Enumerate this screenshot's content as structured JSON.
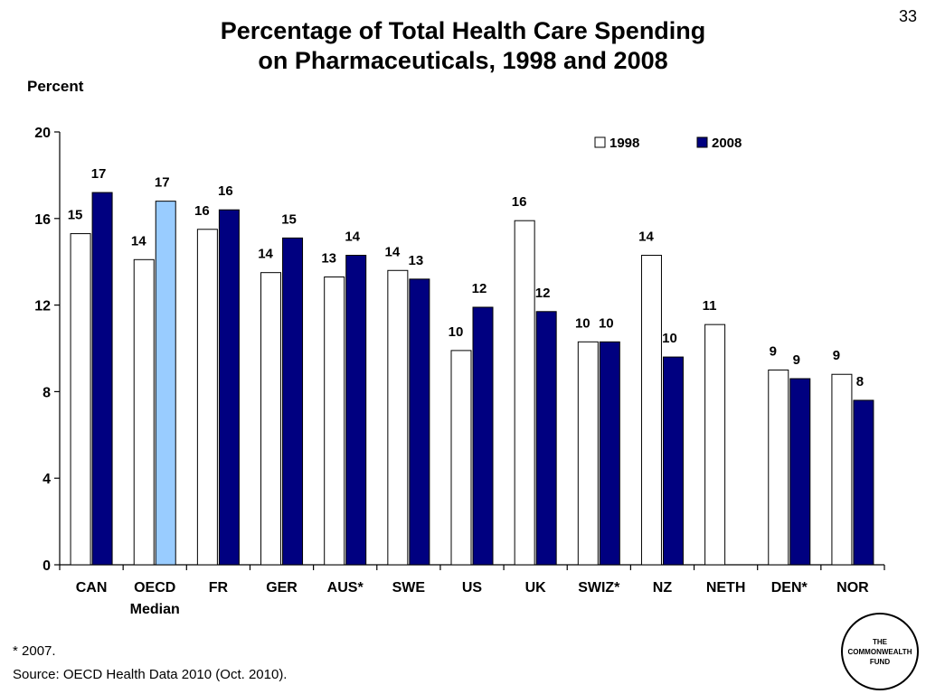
{
  "slide_number": "33",
  "title_line1": "Percentage of Total Health Care Spending",
  "title_line2": "on Pharmaceuticals, 1998 and 2008",
  "footnote": "* 2007.",
  "source": "Source: OECD Health Data 2010 (Oct. 2010).",
  "logo": {
    "line1": "THE",
    "line2": "COMMONWEALTH",
    "line3": "FUND"
  },
  "colors": {
    "series_1998": "#ffffff",
    "series_2008": "#000080",
    "median_2008": "#99ccff"
  },
  "chart_data": {
    "type": "bar",
    "title": "Percentage of Total Health Care Spending on Pharmaceuticals, 1998 and 2008",
    "ylabel": "Percent",
    "xlabel": "",
    "ylim": [
      0,
      20
    ],
    "yticks": [
      0,
      4,
      8,
      12,
      16,
      20
    ],
    "grid": false,
    "legend": "top-right",
    "categories": [
      "CAN",
      "OECD Median",
      "FR",
      "GER",
      "AUS*",
      "SWE",
      "US",
      "UK",
      "SWIZ*",
      "NZ",
      "NETH",
      "DEN*",
      "NOR"
    ],
    "series": [
      {
        "name": "1998",
        "values": [
          15.3,
          14.1,
          15.5,
          13.5,
          13.3,
          13.6,
          9.9,
          15.9,
          10.3,
          14.3,
          11.1,
          9.0,
          8.8
        ],
        "labels": [
          "15",
          "14",
          "16",
          "14",
          "13",
          "14",
          "10",
          "16",
          "10",
          "14",
          "11",
          "9",
          "9"
        ]
      },
      {
        "name": "2008",
        "values": [
          17.2,
          16.8,
          16.4,
          15.1,
          14.3,
          13.2,
          11.9,
          11.7,
          10.3,
          9.6,
          null,
          8.6,
          7.6
        ],
        "labels": [
          "17",
          "17",
          "16",
          "15",
          "14",
          "13",
          "12",
          "12",
          "10",
          "10",
          "",
          "9",
          "8"
        ]
      }
    ]
  }
}
